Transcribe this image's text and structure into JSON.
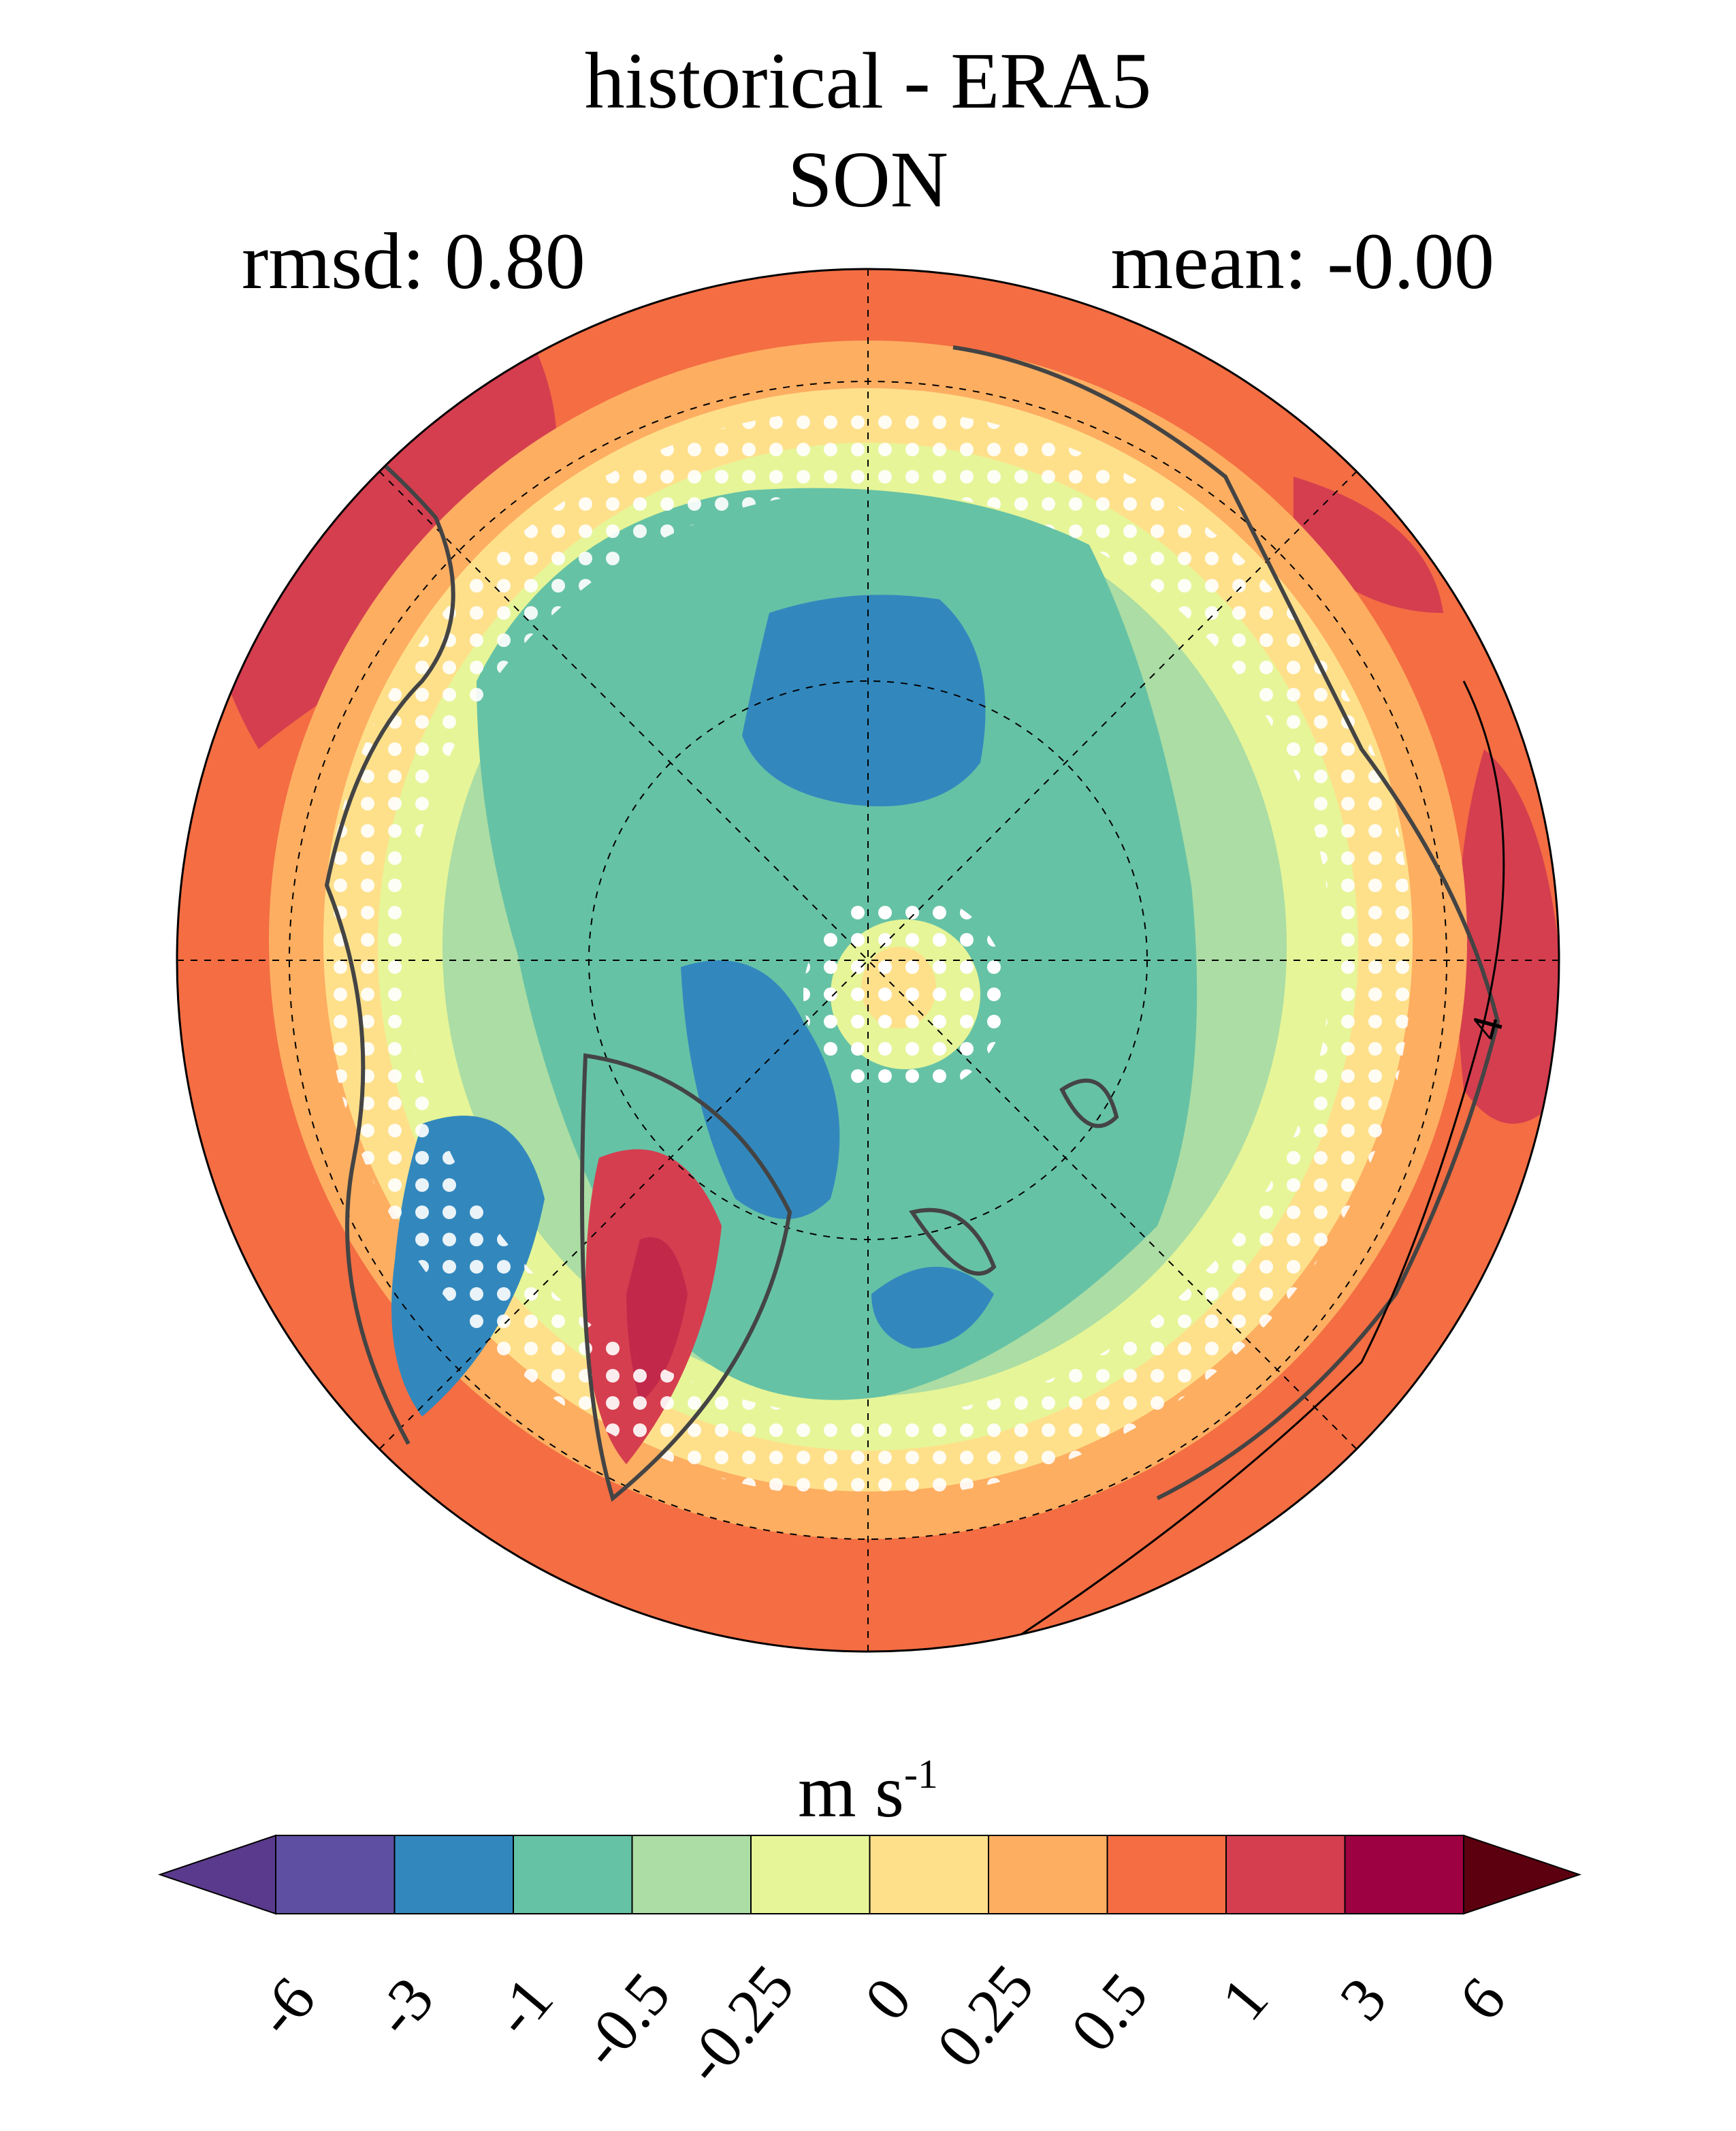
{
  "title_line1": "historical - ERA5",
  "title_line2": "SON",
  "stat_left": "rmsd: 0.80",
  "stat_right": "mean: -0.00",
  "contour_label": "4",
  "units": {
    "base": "m s",
    "exponent": "-1"
  },
  "colorbar": {
    "levels": [
      "-6",
      "-3",
      "-1",
      "-0.5",
      "-0.25",
      "0",
      "0.25",
      "0.5",
      "1",
      "3",
      "6"
    ],
    "colors": [
      "#5e4fa2",
      "#3288bd",
      "#66c2a5",
      "#abdda4",
      "#e6f598",
      "#fee08b",
      "#fdae61",
      "#f46d43",
      "#d53e4f",
      "#9e0142"
    ],
    "under_color": "#5a3a8c",
    "over_color": "#5c0010"
  }
}
